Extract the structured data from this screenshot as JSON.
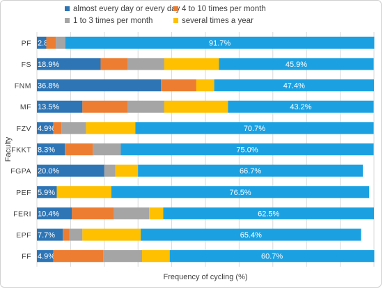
{
  "chart_data": {
    "type": "bar",
    "orientation": "horizontal",
    "stacked": true,
    "xlabel": "Frequency of cycling (%)",
    "ylabel": "Faculty",
    "xlim": [
      0,
      100
    ],
    "grid": true,
    "legend_position": "top",
    "categories": [
      "PF",
      "FS",
      "FNM",
      "MF",
      "FZV",
      "FKKT",
      "FGPA",
      "PEF",
      "FERI",
      "EPF",
      "FF"
    ],
    "series": [
      {
        "name": "almost every day or every day",
        "color": "#2e75b6",
        "values": [
          2.8,
          18.9,
          36.8,
          13.5,
          4.9,
          8.3,
          20.0,
          5.9,
          10.4,
          7.7,
          4.9
        ],
        "labels": [
          "2.8%",
          "18.9%",
          "36.8%",
          "13.5%",
          "4.9%",
          "8.3%",
          "20.0%",
          "5.9%",
          "10.4%",
          "7.7%",
          "4.9%"
        ]
      },
      {
        "name": "4 to 10 times per month",
        "color": "#ed7d31",
        "values": [
          2.8,
          8.1,
          10.5,
          13.5,
          2.4,
          8.3,
          0,
          0,
          12.5,
          1.9,
          14.8
        ],
        "labels": [
          "",
          "",
          "",
          "",
          "",
          "",
          "",
          "",
          "",
          "",
          ""
        ]
      },
      {
        "name": "1 to 3 times per month",
        "color": "#a5a5a5",
        "values": [
          2.8,
          10.8,
          0,
          10.8,
          7.3,
          8.3,
          3.3,
          0,
          10.4,
          3.9,
          11.5
        ],
        "labels": [
          "",
          "",
          "",
          "",
          "",
          "",
          "",
          "",
          "",
          "",
          ""
        ]
      },
      {
        "name": "several times a year",
        "color": "#ffc000",
        "values": [
          0,
          16.2,
          5.3,
          18.9,
          14.6,
          0,
          6.7,
          16.2,
          4.2,
          17.3,
          8.2
        ],
        "labels": [
          "",
          "",
          "",
          "",
          "",
          "",
          "",
          "",
          "",
          "",
          ""
        ]
      },
      {
        "name": "",
        "color": "#1ba1e2",
        "values": [
          91.7,
          45.9,
          47.4,
          43.2,
          70.7,
          75.0,
          66.7,
          76.5,
          62.5,
          65.4,
          60.7
        ],
        "labels": [
          "91.7%",
          "45.9%",
          "47.4%",
          "43.2%",
          "70.7%",
          "75.0%",
          "66.7%",
          "76.5%",
          "62.5%",
          "65.4%",
          "60.7%"
        ]
      }
    ]
  }
}
